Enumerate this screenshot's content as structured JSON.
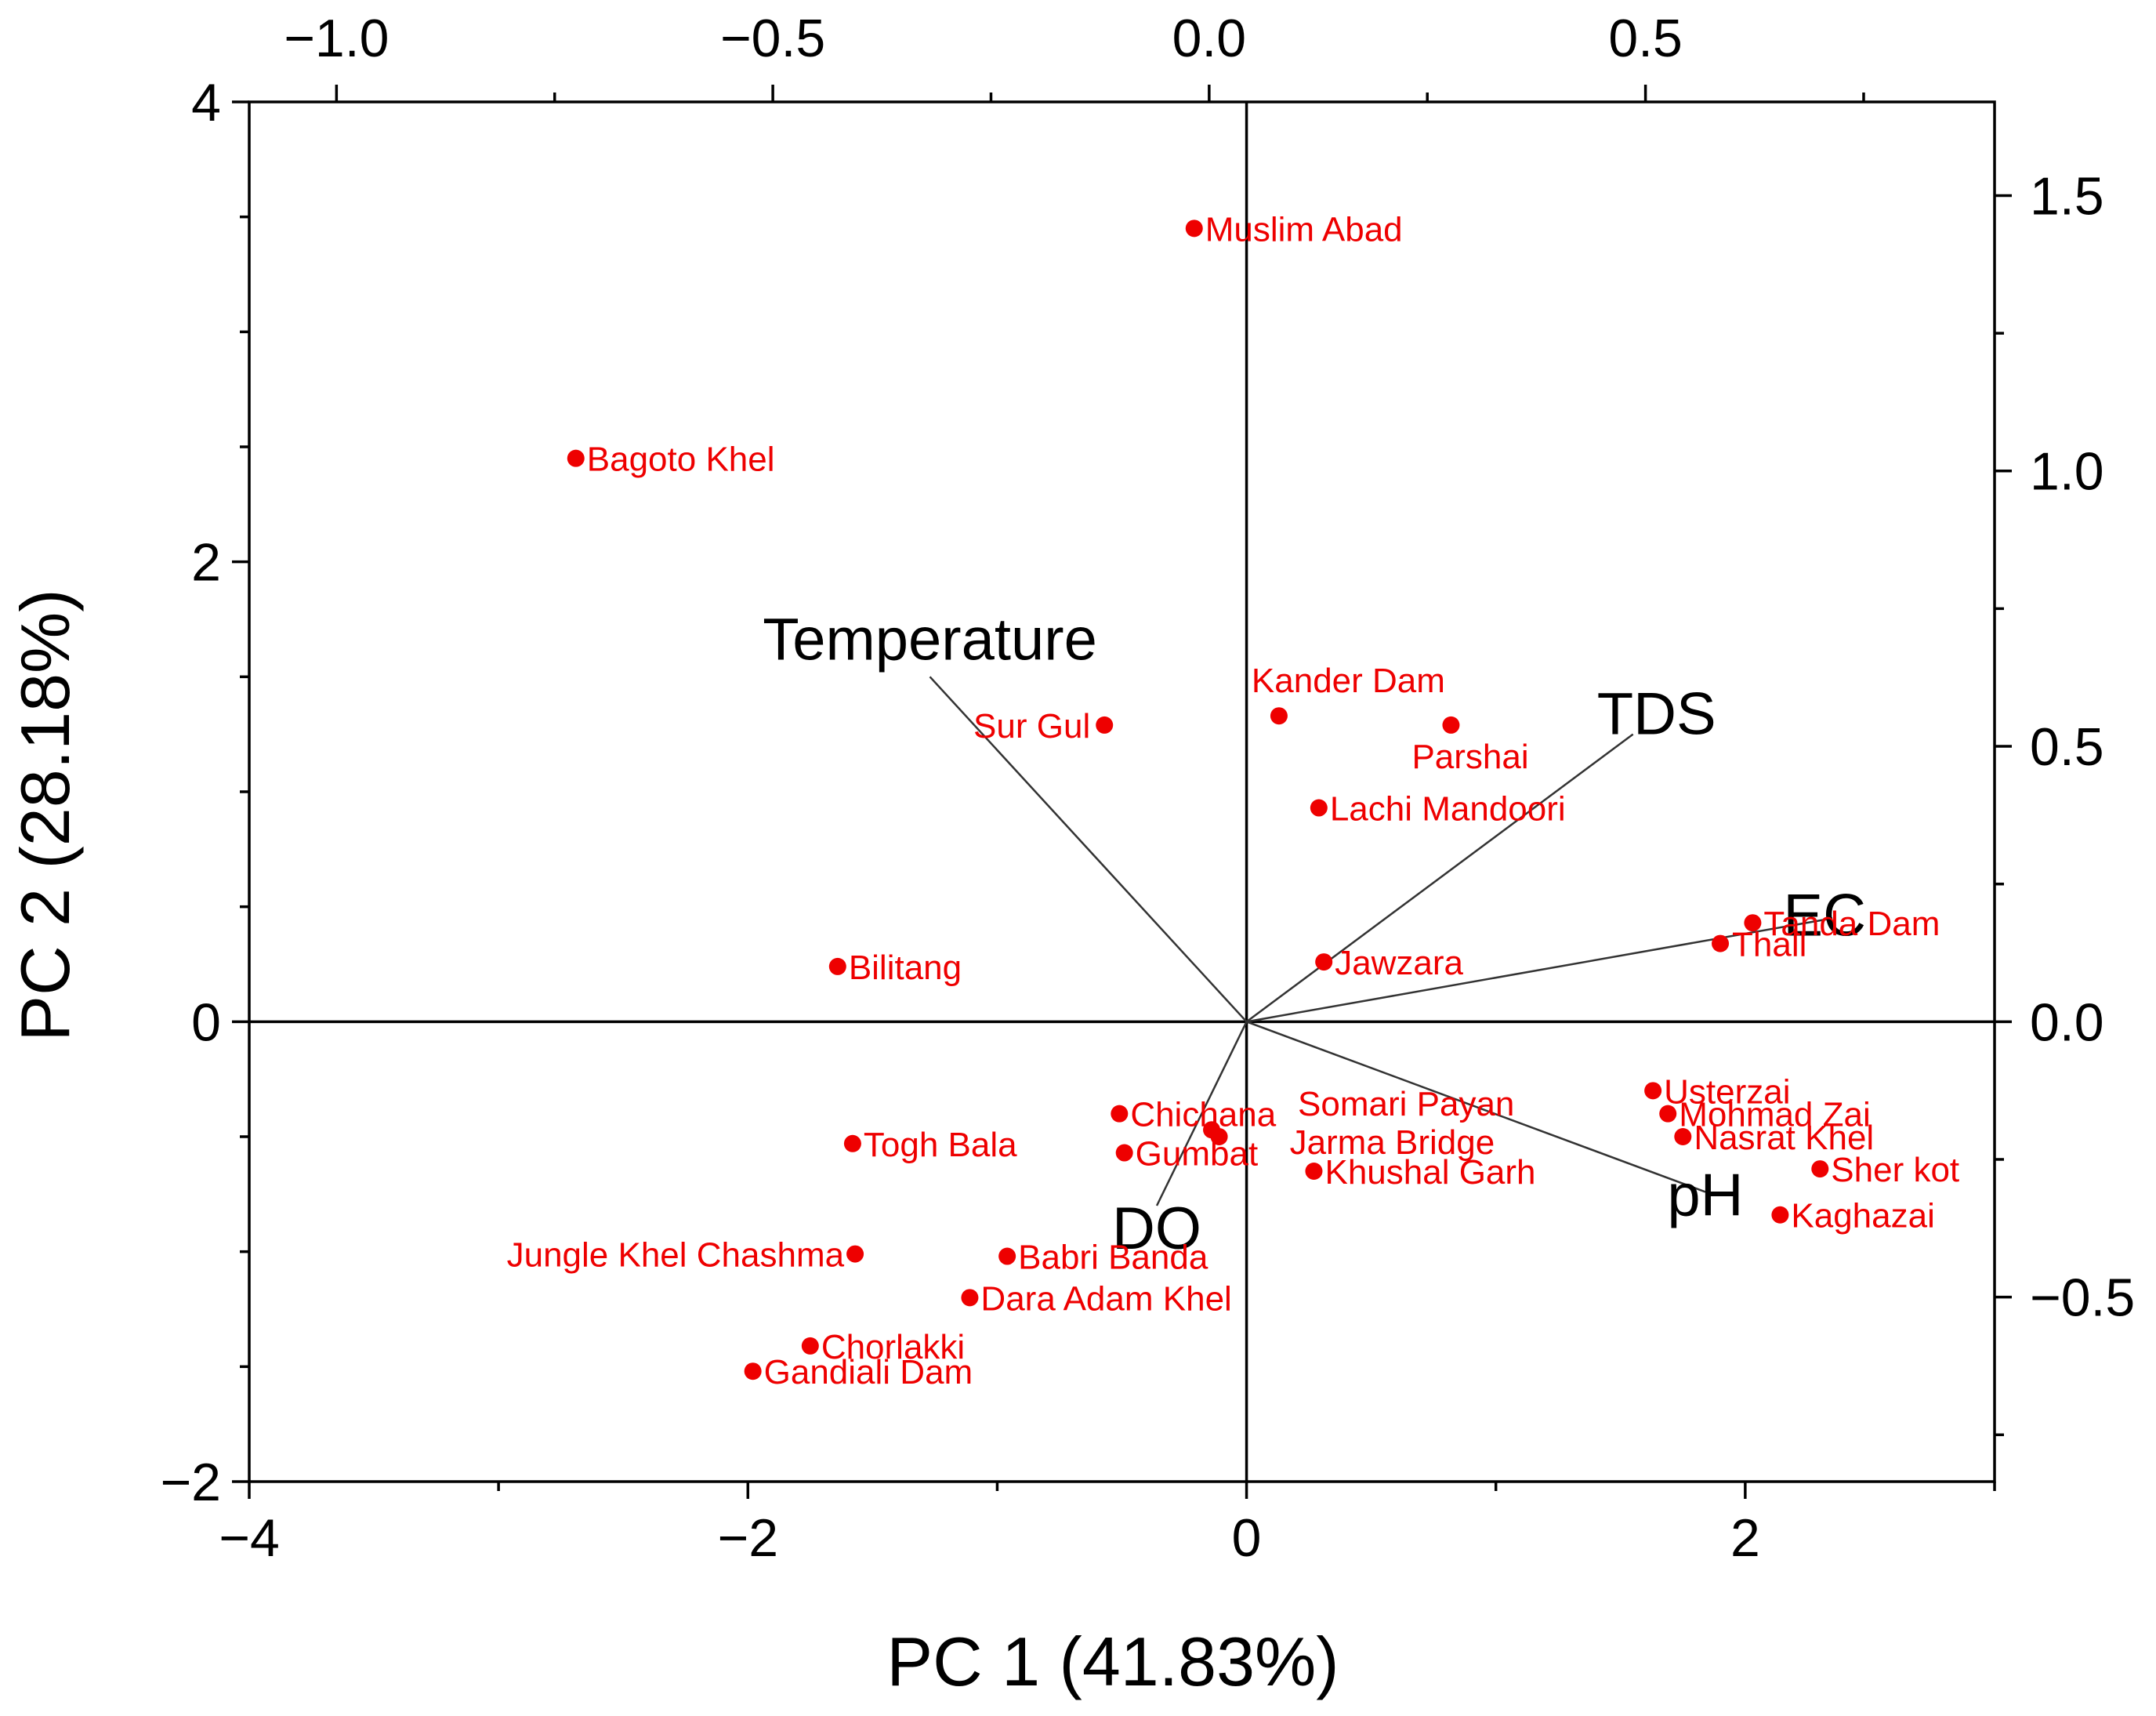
{
  "chart_data": {
    "type": "scatter",
    "subtype": "biplot",
    "xlabel": "PC 1 (41.83%)",
    "ylabel": "PC 2 (28.18%)",
    "xlim": [
      -4,
      3
    ],
    "ylim": [
      -2,
      4
    ],
    "xticks": [
      -4,
      -2,
      0,
      2
    ],
    "yticks": [
      -2,
      0,
      2,
      4
    ],
    "top_axis": {
      "lim": [
        -1.1,
        0.9
      ],
      "ticks": [
        -1.0,
        -0.5,
        0.0,
        0.5
      ],
      "labels": [
        "−1.0",
        "−0.5",
        "0.0",
        "0.5"
      ]
    },
    "right_axis": {
      "lim": [
        -0.835,
        1.67
      ],
      "ticks": [
        -0.5,
        0.0,
        0.5,
        1.0,
        1.5
      ],
      "labels": [
        "−0.5",
        "0.0",
        "0.5",
        "1.0",
        "1.5"
      ]
    },
    "x_tick_labels": [
      "−4",
      "−2",
      "0",
      "2"
    ],
    "y_tick_labels": [
      "−2",
      "0",
      "2",
      "4"
    ],
    "series": [
      {
        "name": "Sites",
        "color": "#ee0000",
        "points": [
          {
            "label": "Muslim Abad",
            "x": -0.21,
            "y": 3.45
          },
          {
            "label": "Bagoto Khel",
            "x": -2.69,
            "y": 2.45
          },
          {
            "label": "Sur Gul",
            "x": -0.57,
            "y": 1.29
          },
          {
            "label": "Kander Dam",
            "x": 0.13,
            "y": 1.33
          },
          {
            "label": "Parshai",
            "x": 0.82,
            "y": 1.29
          },
          {
            "label": "Lachi Mandoori",
            "x": 0.29,
            "y": 0.93
          },
          {
            "label": "Tanda Dam",
            "x": 2.03,
            "y": 0.43
          },
          {
            "label": "Thall",
            "x": 1.9,
            "y": 0.34
          },
          {
            "label": "Bilitang",
            "x": -1.64,
            "y": 0.24
          },
          {
            "label": "Jawzara",
            "x": 0.31,
            "y": 0.26
          },
          {
            "label": "Usterzai",
            "x": 1.63,
            "y": -0.3
          },
          {
            "label": "Mohmad Zai",
            "x": 1.69,
            "y": -0.4
          },
          {
            "label": "Nasrat Khel",
            "x": 1.75,
            "y": -0.5
          },
          {
            "label": "Sher kot",
            "x": 2.3,
            "y": -0.64
          },
          {
            "label": "Kaghazai",
            "x": 2.14,
            "y": -0.84
          },
          {
            "label": "Chichana",
            "x": -0.51,
            "y": -0.4
          },
          {
            "label": "Somari Payan",
            "x": -0.14,
            "y": -0.47
          },
          {
            "label": "Jarma Bridge",
            "x": -0.11,
            "y": -0.5
          },
          {
            "label": "Gumbat",
            "x": -0.49,
            "y": -0.57
          },
          {
            "label": "Khushal Garh",
            "x": 0.27,
            "y": -0.65
          },
          {
            "label": "Togh Bala",
            "x": -1.58,
            "y": -0.53
          },
          {
            "label": "Jungle Khel Chashma",
            "x": -1.57,
            "y": -1.01
          },
          {
            "label": "Babri Banda",
            "x": -0.96,
            "y": -1.02
          },
          {
            "label": "Dara Adam Khel",
            "x": -1.11,
            "y": -1.2
          },
          {
            "label": "Chorlakki",
            "x": -1.75,
            "y": -1.41
          },
          {
            "label": "Gandiali Dam",
            "x": -1.98,
            "y": -1.52
          }
        ]
      }
    ],
    "loadings": [
      {
        "label": "Temperature",
        "x": -1.27,
        "y": 1.5
      },
      {
        "label": "TDS",
        "x": 1.55,
        "y": 1.25
      },
      {
        "label": "EC",
        "x": 2.35,
        "y": 0.45
      },
      {
        "label": "pH",
        "x": 1.84,
        "y": -0.74
      },
      {
        "label": "DO",
        "x": -0.36,
        "y": -0.8
      }
    ],
    "grid": false,
    "zero_lines": true
  }
}
